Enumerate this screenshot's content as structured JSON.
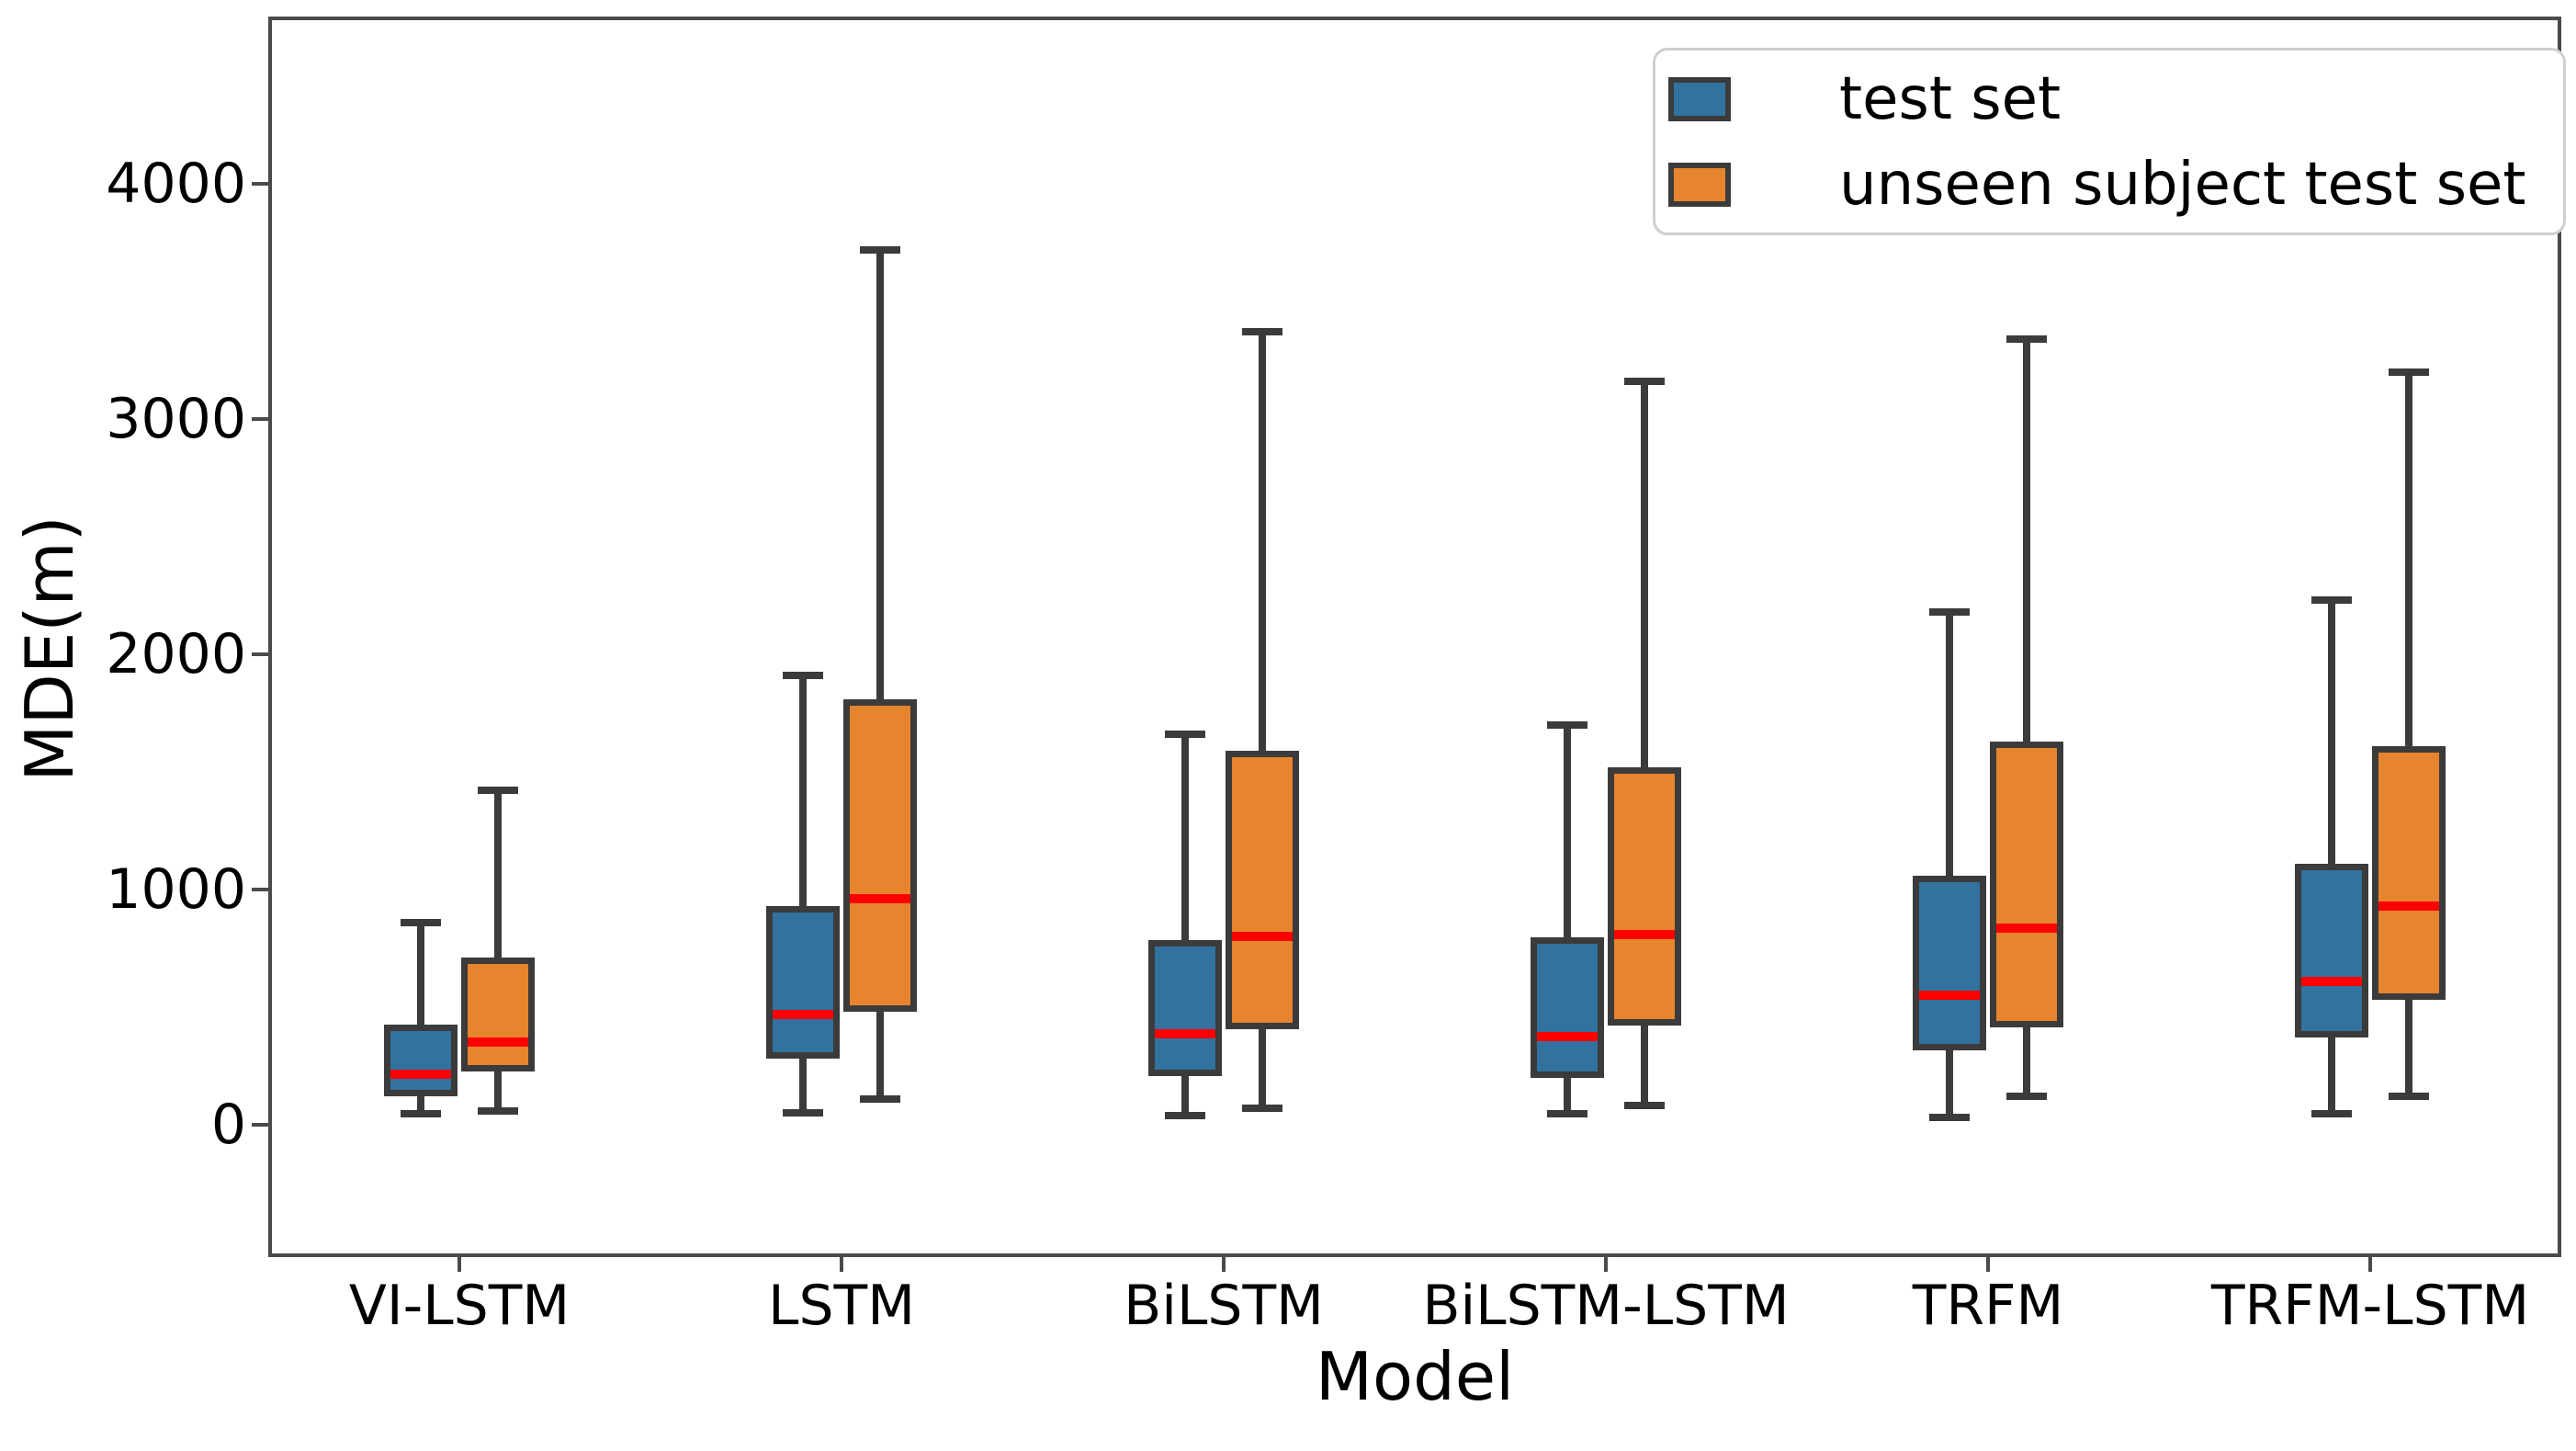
{
  "figure": {
    "background": "#ffffff"
  },
  "chart_data": {
    "type": "box",
    "title": "",
    "xlabel": "Model",
    "ylabel": "MDE(m)",
    "categories": [
      "VI-LSTM",
      "LSTM",
      "BiLSTM",
      "BiLSTM-LSTM",
      "TRFM",
      "TRFM-LSTM"
    ],
    "ytick_values": [
      0,
      1000,
      2000,
      3000,
      4000
    ],
    "ytick_labels": [
      "0",
      "1000",
      "2000",
      "3000",
      "4000"
    ],
    "ylim": [
      -563,
      4711
    ],
    "grid": false,
    "legend_position": "upper right",
    "legend": {
      "items": [
        {
          "label": "test set",
          "color": "#31729f"
        },
        {
          "label": "unseen subject test set",
          "color": "#e7842e"
        }
      ]
    },
    "style": {
      "edge_color": "#3b3b3b",
      "median_color": "#ff0000",
      "spine_color": "#4a4a4a"
    },
    "series": [
      {
        "name": "test set",
        "color": "#31729f",
        "boxes": [
          {
            "whislo": 45,
            "q1": 120,
            "med": 215,
            "q3": 425,
            "whishi": 860
          },
          {
            "whislo": 50,
            "q1": 280,
            "med": 470,
            "q3": 930,
            "whishi": 1910
          },
          {
            "whislo": 40,
            "q1": 205,
            "med": 385,
            "q3": 785,
            "whishi": 1660
          },
          {
            "whislo": 45,
            "q1": 200,
            "med": 375,
            "q3": 795,
            "whishi": 1700
          },
          {
            "whislo": 30,
            "q1": 315,
            "med": 550,
            "q3": 1060,
            "whishi": 2180
          },
          {
            "whislo": 45,
            "q1": 370,
            "med": 610,
            "q3": 1110,
            "whishi": 2230
          }
        ]
      },
      {
        "name": "unseen subject test set",
        "color": "#e7842e",
        "boxes": [
          {
            "whislo": 60,
            "q1": 225,
            "med": 350,
            "q3": 710,
            "whishi": 1420
          },
          {
            "whislo": 110,
            "q1": 480,
            "med": 960,
            "q3": 1810,
            "whishi": 3720
          },
          {
            "whislo": 70,
            "q1": 405,
            "med": 800,
            "q3": 1590,
            "whishi": 3370
          },
          {
            "whislo": 80,
            "q1": 420,
            "med": 810,
            "q3": 1520,
            "whishi": 3160
          },
          {
            "whislo": 120,
            "q1": 415,
            "med": 835,
            "q3": 1630,
            "whishi": 3340
          },
          {
            "whislo": 120,
            "q1": 530,
            "med": 930,
            "q3": 1610,
            "whishi": 3200
          }
        ]
      }
    ]
  }
}
